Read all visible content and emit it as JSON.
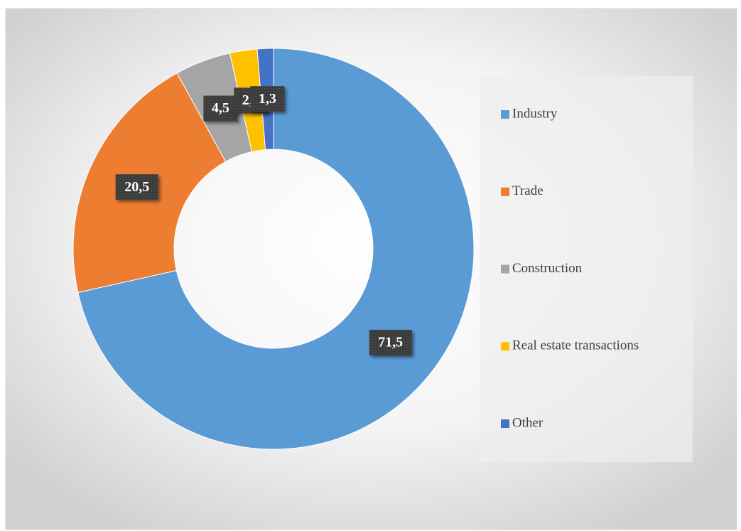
{
  "chart_data": {
    "type": "donut",
    "categories": [
      "Industry",
      "Trade",
      "Construction",
      "Real estate transactions",
      "Other"
    ],
    "values": [
      71.5,
      20.5,
      4.5,
      2.2,
      1.3
    ],
    "value_labels": [
      "71,5",
      "20,5",
      "4,5",
      "2,2",
      "1,3"
    ],
    "colors": [
      "#5b9bd5",
      "#ed7d31",
      "#a5a5a5",
      "#ffc000",
      "#4472c4"
    ],
    "legend": "right"
  }
}
